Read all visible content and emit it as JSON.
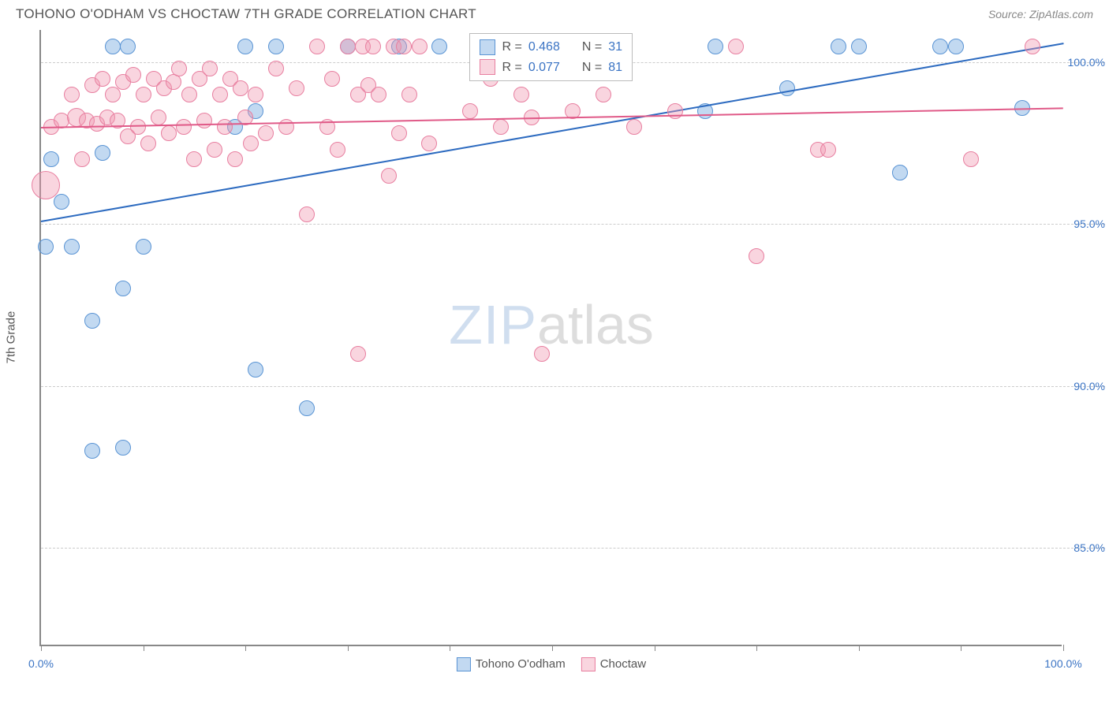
{
  "header": {
    "title": "TOHONO O'ODHAM VS CHOCTAW 7TH GRADE CORRELATION CHART",
    "source": "Source: ZipAtlas.com"
  },
  "watermark": {
    "part1": "ZIP",
    "part2": "atlas"
  },
  "chart": {
    "type": "scatter",
    "y_axis_title": "7th Grade",
    "xlim": [
      0,
      100
    ],
    "ylim": [
      82,
      101
    ],
    "background_color": "#ffffff",
    "grid_color": "#cccccc",
    "axis_color": "#888888",
    "x_ticks": [
      0,
      10,
      20,
      30,
      40,
      50,
      60,
      70,
      80,
      90,
      100
    ],
    "x_labels": [
      {
        "v": 0,
        "label": "0.0%",
        "color": "#3b74c4"
      },
      {
        "v": 100,
        "label": "100.0%",
        "color": "#3b74c4"
      }
    ],
    "y_gridlines": [
      {
        "v": 85,
        "label": "85.0%",
        "color": "#3b74c4"
      },
      {
        "v": 90,
        "label": "90.0%",
        "color": "#3b74c4"
      },
      {
        "v": 95,
        "label": "95.0%",
        "color": "#3b74c4"
      },
      {
        "v": 100,
        "label": "100.0%",
        "color": "#3b74c4"
      }
    ],
    "series": [
      {
        "name": "Tohono O'odham",
        "fill": "rgba(120,170,225,0.45)",
        "stroke": "#5a94d4",
        "r_label": "R =",
        "r_value": "0.468",
        "n_label": "N =",
        "n_value": "31",
        "trend": {
          "x1": 0,
          "y1": 95.1,
          "x2": 100,
          "y2": 100.6,
          "color": "#2d6bc0",
          "width": 2
        },
        "points": [
          {
            "x": 0.5,
            "y": 94.3,
            "r": 10
          },
          {
            "x": 3,
            "y": 94.3,
            "r": 10
          },
          {
            "x": 10,
            "y": 94.3,
            "r": 10
          },
          {
            "x": 5,
            "y": 92.0,
            "r": 10
          },
          {
            "x": 2,
            "y": 95.7,
            "r": 10
          },
          {
            "x": 1,
            "y": 97.0,
            "r": 10
          },
          {
            "x": 6,
            "y": 97.2,
            "r": 10
          },
          {
            "x": 7,
            "y": 100.5,
            "r": 10
          },
          {
            "x": 8.5,
            "y": 100.5,
            "r": 10
          },
          {
            "x": 8,
            "y": 93.0,
            "r": 10
          },
          {
            "x": 5,
            "y": 88.0,
            "r": 10
          },
          {
            "x": 8,
            "y": 88.1,
            "r": 10
          },
          {
            "x": 20,
            "y": 100.5,
            "r": 10
          },
          {
            "x": 19,
            "y": 98.0,
            "r": 10
          },
          {
            "x": 21,
            "y": 98.5,
            "r": 10
          },
          {
            "x": 23,
            "y": 100.5,
            "r": 10
          },
          {
            "x": 21,
            "y": 90.5,
            "r": 10
          },
          {
            "x": 26,
            "y": 89.3,
            "r": 10
          },
          {
            "x": 30,
            "y": 100.5,
            "r": 10
          },
          {
            "x": 35,
            "y": 100.5,
            "r": 10
          },
          {
            "x": 39,
            "y": 100.5,
            "r": 10
          },
          {
            "x": 47,
            "y": 100.5,
            "r": 10
          },
          {
            "x": 66,
            "y": 100.5,
            "r": 10
          },
          {
            "x": 65,
            "y": 98.5,
            "r": 10
          },
          {
            "x": 73,
            "y": 99.2,
            "r": 10
          },
          {
            "x": 78,
            "y": 100.5,
            "r": 10
          },
          {
            "x": 80,
            "y": 100.5,
            "r": 10
          },
          {
            "x": 84,
            "y": 96.6,
            "r": 10
          },
          {
            "x": 88,
            "y": 100.5,
            "r": 10
          },
          {
            "x": 89.5,
            "y": 100.5,
            "r": 10
          },
          {
            "x": 96,
            "y": 98.6,
            "r": 10
          }
        ]
      },
      {
        "name": "Choctaw",
        "fill": "rgba(240,150,175,0.40)",
        "stroke": "#e87fa0",
        "r_label": "R =",
        "r_value": "0.077",
        "n_label": "N =",
        "n_value": "81",
        "trend": {
          "x1": 0,
          "y1": 98.0,
          "x2": 100,
          "y2": 98.6,
          "color": "#e05a88",
          "width": 2
        },
        "points": [
          {
            "x": 0.5,
            "y": 96.2,
            "r": 18
          },
          {
            "x": 1,
            "y": 98.0,
            "r": 10
          },
          {
            "x": 2,
            "y": 98.2,
            "r": 10
          },
          {
            "x": 3,
            "y": 99.0,
            "r": 10
          },
          {
            "x": 3.5,
            "y": 98.3,
            "r": 12
          },
          {
            "x": 4,
            "y": 97.0,
            "r": 10
          },
          {
            "x": 4.5,
            "y": 98.2,
            "r": 10
          },
          {
            "x": 5,
            "y": 99.3,
            "r": 10
          },
          {
            "x": 5.5,
            "y": 98.1,
            "r": 10
          },
          {
            "x": 6,
            "y": 99.5,
            "r": 10
          },
          {
            "x": 6.5,
            "y": 98.3,
            "r": 10
          },
          {
            "x": 7,
            "y": 99.0,
            "r": 10
          },
          {
            "x": 7.5,
            "y": 98.2,
            "r": 10
          },
          {
            "x": 8,
            "y": 99.4,
            "r": 10
          },
          {
            "x": 8.5,
            "y": 97.7,
            "r": 10
          },
          {
            "x": 9,
            "y": 99.6,
            "r": 10
          },
          {
            "x": 9.5,
            "y": 98.0,
            "r": 10
          },
          {
            "x": 10,
            "y": 99.0,
            "r": 10
          },
          {
            "x": 10.5,
            "y": 97.5,
            "r": 10
          },
          {
            "x": 11,
            "y": 99.5,
            "r": 10
          },
          {
            "x": 11.5,
            "y": 98.3,
            "r": 10
          },
          {
            "x": 12,
            "y": 99.2,
            "r": 10
          },
          {
            "x": 12.5,
            "y": 97.8,
            "r": 10
          },
          {
            "x": 13,
            "y": 99.4,
            "r": 10
          },
          {
            "x": 13.5,
            "y": 99.8,
            "r": 10
          },
          {
            "x": 14,
            "y": 98.0,
            "r": 10
          },
          {
            "x": 14.5,
            "y": 99.0,
            "r": 10
          },
          {
            "x": 15,
            "y": 97.0,
            "r": 10
          },
          {
            "x": 15.5,
            "y": 99.5,
            "r": 10
          },
          {
            "x": 16,
            "y": 98.2,
            "r": 10
          },
          {
            "x": 16.5,
            "y": 99.8,
            "r": 10
          },
          {
            "x": 17,
            "y": 97.3,
            "r": 10
          },
          {
            "x": 17.5,
            "y": 99.0,
            "r": 10
          },
          {
            "x": 18,
            "y": 98.0,
            "r": 10
          },
          {
            "x": 18.5,
            "y": 99.5,
            "r": 10
          },
          {
            "x": 19,
            "y": 97.0,
            "r": 10
          },
          {
            "x": 19.5,
            "y": 99.2,
            "r": 10
          },
          {
            "x": 20,
            "y": 98.3,
            "r": 10
          },
          {
            "x": 20.5,
            "y": 97.5,
            "r": 10
          },
          {
            "x": 21,
            "y": 99.0,
            "r": 10
          },
          {
            "x": 22,
            "y": 97.8,
            "r": 10
          },
          {
            "x": 23,
            "y": 99.8,
            "r": 10
          },
          {
            "x": 24,
            "y": 98.0,
            "r": 10
          },
          {
            "x": 25,
            "y": 99.2,
            "r": 10
          },
          {
            "x": 26,
            "y": 95.3,
            "r": 10
          },
          {
            "x": 27,
            "y": 100.5,
            "r": 10
          },
          {
            "x": 28,
            "y": 98.0,
            "r": 10
          },
          {
            "x": 28.5,
            "y": 99.5,
            "r": 10
          },
          {
            "x": 29,
            "y": 97.3,
            "r": 10
          },
          {
            "x": 30,
            "y": 100.5,
            "r": 10
          },
          {
            "x": 31,
            "y": 99.0,
            "r": 10
          },
          {
            "x": 31.5,
            "y": 100.5,
            "r": 10
          },
          {
            "x": 32,
            "y": 99.3,
            "r": 10
          },
          {
            "x": 32.5,
            "y": 100.5,
            "r": 10
          },
          {
            "x": 33,
            "y": 99.0,
            "r": 10
          },
          {
            "x": 34,
            "y": 96.5,
            "r": 10
          },
          {
            "x": 34.5,
            "y": 100.5,
            "r": 10
          },
          {
            "x": 35,
            "y": 97.8,
            "r": 10
          },
          {
            "x": 35.5,
            "y": 100.5,
            "r": 10
          },
          {
            "x": 36,
            "y": 99.0,
            "r": 10
          },
          {
            "x": 37,
            "y": 100.5,
            "r": 10
          },
          {
            "x": 38,
            "y": 97.5,
            "r": 10
          },
          {
            "x": 31,
            "y": 91.0,
            "r": 10
          },
          {
            "x": 42,
            "y": 98.5,
            "r": 10
          },
          {
            "x": 43,
            "y": 100.5,
            "r": 10
          },
          {
            "x": 44,
            "y": 99.5,
            "r": 10
          },
          {
            "x": 45,
            "y": 98.0,
            "r": 10
          },
          {
            "x": 47,
            "y": 99.0,
            "r": 10
          },
          {
            "x": 48,
            "y": 98.3,
            "r": 10
          },
          {
            "x": 50,
            "y": 100.5,
            "r": 10
          },
          {
            "x": 52,
            "y": 98.5,
            "r": 10
          },
          {
            "x": 55,
            "y": 99.0,
            "r": 10
          },
          {
            "x": 58,
            "y": 98.0,
            "r": 10
          },
          {
            "x": 62,
            "y": 98.5,
            "r": 10
          },
          {
            "x": 68,
            "y": 100.5,
            "r": 10
          },
          {
            "x": 70,
            "y": 94.0,
            "r": 10
          },
          {
            "x": 76,
            "y": 97.3,
            "r": 10
          },
          {
            "x": 77,
            "y": 97.3,
            "r": 10
          },
          {
            "x": 91,
            "y": 97.0,
            "r": 10
          },
          {
            "x": 97,
            "y": 100.5,
            "r": 10
          },
          {
            "x": 49,
            "y": 91.0,
            "r": 10
          }
        ]
      }
    ],
    "bottom_legend": [
      {
        "label": "Tohono O'odham",
        "fill": "rgba(120,170,225,0.45)",
        "stroke": "#5a94d4"
      },
      {
        "label": "Choctaw",
        "fill": "rgba(240,150,175,0.40)",
        "stroke": "#e87fa0"
      }
    ]
  }
}
